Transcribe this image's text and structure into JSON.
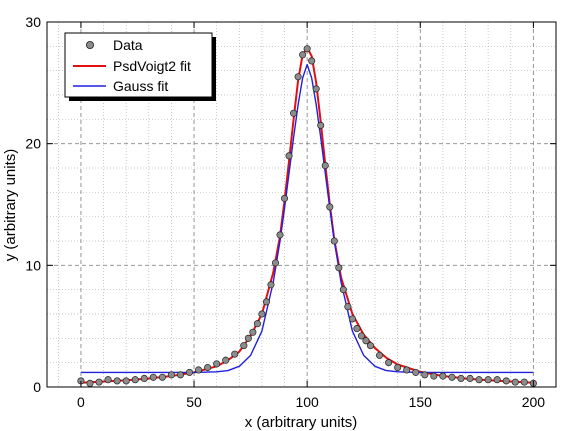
{
  "chart_data": {
    "type": "scatter",
    "xlabel": "x (arbitrary units)",
    "ylabel": "y (arbitrary units)",
    "xlim": [
      -15,
      210
    ],
    "ylim": [
      0,
      30
    ],
    "xticks": [
      0,
      50,
      100,
      150,
      200
    ],
    "yticks": [
      0,
      10,
      20,
      30
    ],
    "grid": true,
    "legend_position": "top-left",
    "series": [
      {
        "name": "Data",
        "kind": "points",
        "color": "#8c8c8c",
        "x": [
          0,
          4,
          8,
          12,
          16,
          20,
          24,
          28,
          32,
          36,
          40,
          44,
          48,
          52,
          56,
          60,
          64,
          68,
          72,
          74,
          76,
          78,
          80,
          82,
          84,
          86,
          88,
          90,
          92,
          94,
          96,
          98,
          100,
          102,
          104,
          106,
          108,
          110,
          112,
          114,
          116,
          118,
          120,
          122,
          124,
          126,
          128,
          132,
          136,
          140,
          144,
          148,
          152,
          156,
          160,
          164,
          168,
          172,
          176,
          180,
          184,
          188,
          192,
          196,
          200
        ],
        "y": [
          0.5,
          0.3,
          0.4,
          0.6,
          0.5,
          0.5,
          0.6,
          0.7,
          0.8,
          0.8,
          1.0,
          1.0,
          1.2,
          1.4,
          1.6,
          1.9,
          2.2,
          2.7,
          3.4,
          4.0,
          4.5,
          5.2,
          6.0,
          7.0,
          8.4,
          10.2,
          12.5,
          15.5,
          19.0,
          22.5,
          25.5,
          27.3,
          27.8,
          26.8,
          24.5,
          21.5,
          18.2,
          14.8,
          12.0,
          9.8,
          8.0,
          6.6,
          5.6,
          4.8,
          4.2,
          3.8,
          3.4,
          2.6,
          2.0,
          1.6,
          1.4,
          1.2,
          1.0,
          0.9,
          0.9,
          0.8,
          0.7,
          0.7,
          0.6,
          0.6,
          0.6,
          0.5,
          0.4,
          0.4,
          0.3
        ]
      },
      {
        "name": "PsdVoigt2 fit",
        "kind": "line",
        "color": "#e01010",
        "x": [
          0,
          10,
          20,
          30,
          40,
          50,
          60,
          65,
          70,
          75,
          80,
          85,
          88,
          90,
          92,
          94,
          96,
          98,
          100,
          102,
          104,
          106,
          108,
          110,
          112,
          115,
          120,
          125,
          130,
          135,
          140,
          150,
          160,
          170,
          180,
          190,
          200
        ],
        "y": [
          0.35,
          0.45,
          0.55,
          0.7,
          0.9,
          1.2,
          1.7,
          2.2,
          2.9,
          4.2,
          6.0,
          9.4,
          12.4,
          15.3,
          18.6,
          22.0,
          25.2,
          27.3,
          27.9,
          27.2,
          25.0,
          21.8,
          18.3,
          15.0,
          12.1,
          9.0,
          6.0,
          4.3,
          3.2,
          2.4,
          1.85,
          1.25,
          0.9,
          0.7,
          0.55,
          0.45,
          0.35
        ]
      },
      {
        "name": "Gauss fit",
        "kind": "line",
        "color": "#2020e0",
        "x": [
          0,
          10,
          20,
          30,
          40,
          50,
          60,
          65,
          70,
          75,
          80,
          85,
          88,
          90,
          92,
          94,
          96,
          98,
          100,
          102,
          104,
          106,
          108,
          110,
          112,
          115,
          120,
          125,
          130,
          135,
          140,
          150,
          160,
          170,
          180,
          190,
          200
        ],
        "y": [
          1.2,
          1.2,
          1.2,
          1.2,
          1.2,
          1.2,
          1.25,
          1.35,
          1.7,
          2.6,
          4.6,
          8.6,
          12.0,
          14.7,
          17.6,
          20.5,
          23.2,
          25.4,
          26.5,
          25.4,
          23.2,
          20.5,
          17.6,
          14.7,
          12.0,
          8.6,
          4.6,
          2.6,
          1.7,
          1.35,
          1.25,
          1.2,
          1.2,
          1.2,
          1.2,
          1.2,
          1.2
        ]
      }
    ]
  }
}
